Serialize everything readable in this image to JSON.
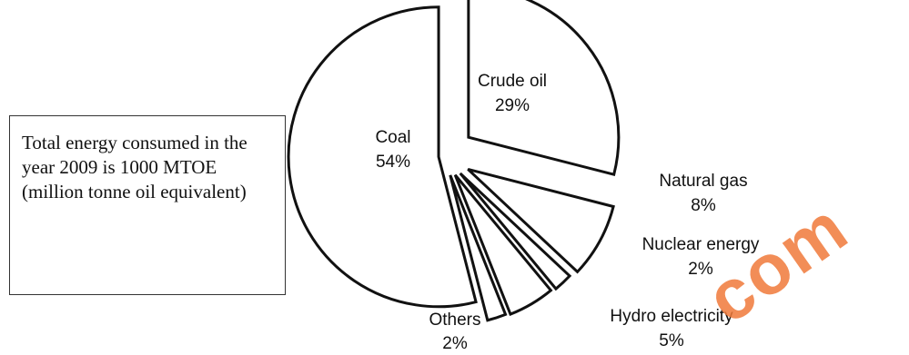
{
  "note": "Total energy consumed in the year 2009 is 1000 MTOE (million tonne oil equivalent)",
  "watermark": "com",
  "chart_data": {
    "type": "pie",
    "title": "",
    "slices": [
      {
        "label": "Crude oil",
        "value": 29,
        "display": "29%"
      },
      {
        "label": "Natural gas",
        "value": 8,
        "display": "8%"
      },
      {
        "label": "Nuclear energy",
        "value": 2,
        "display": "2%"
      },
      {
        "label": "Hydro electricity",
        "value": 5,
        "display": "5%"
      },
      {
        "label": "Others",
        "value": 2,
        "display": "2%"
      },
      {
        "label": "Coal",
        "value": 54,
        "display": "54%"
      }
    ],
    "exploded": true,
    "fill": "#ffffff",
    "stroke": "#111111"
  }
}
